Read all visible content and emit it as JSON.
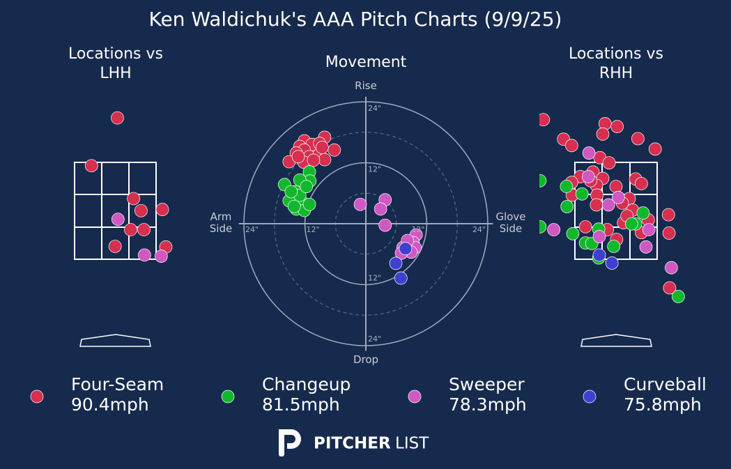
{
  "title": "Ken Waldichuk's AAA Pitch Charts (9/9/25)",
  "brand": {
    "bold": "PITCHER",
    "light": "LIST"
  },
  "chart_data": [
    {
      "type": "scatter",
      "title": "Locations vs LHH",
      "xlim": [
        -1.33,
        1.33
      ],
      "ylim": [
        0,
        4.5
      ],
      "series": [
        {
          "name": "Four-Seam",
          "color": "#d62f4f",
          "x": [
            0.03,
            -0.42,
            0.31,
            0.44,
            0.81,
            0.26,
            0.49,
            -0.01,
            0.87
          ],
          "values": [
            4.05,
            3.22,
            2.65,
            2.44,
            2.46,
            2.11,
            2.11,
            1.82,
            1.81
          ]
        },
        {
          "name": "Sweeper",
          "color": "#d058c2",
          "x": [
            0.04,
            0.5,
            0.79
          ],
          "values": [
            2.29,
            1.67,
            1.65
          ]
        }
      ]
    },
    {
      "type": "scatter",
      "title": "Movement",
      "xlim": [
        -25,
        25
      ],
      "ylim": [
        -25,
        25
      ],
      "xticks": [
        {
          "value": -24,
          "label": "24\""
        },
        {
          "value": -12,
          "label": "12\""
        },
        {
          "value": 12,
          "label": "12\""
        },
        {
          "value": 24,
          "label": "24\""
        }
      ],
      "yticks": [
        {
          "value": -24,
          "label": "24\""
        },
        {
          "value": -12,
          "label": "12\""
        },
        {
          "value": 12,
          "label": "12\""
        },
        {
          "value": 24,
          "label": "24\""
        }
      ],
      "minor_rings": [
        6,
        18
      ],
      "axis_labels": {
        "top": "Rise",
        "bottom": "Drop",
        "left": "Arm Side",
        "right": "Glove Side"
      },
      "series": [
        {
          "name": "Four-Seam",
          "velocity": "90.4mph",
          "color": "#d62f4f",
          "x": [
            -8.1,
            -12.1,
            -13.0,
            -10.6,
            -9.1,
            -12.1,
            -13.7,
            -11.1,
            -9.2,
            -8.1,
            -6.2,
            -15.1,
            -12.2,
            -10.3,
            -13.3,
            -8.6
          ],
          "values": [
            17.0,
            16.3,
            15.2,
            15.6,
            15.8,
            14.5,
            13.9,
            13.2,
            13.6,
            12.6,
            14.5,
            12.2,
            12.1,
            12.5,
            13.2,
            15.0
          ]
        },
        {
          "name": "Changeup",
          "velocity": "81.5mph",
          "color": "#12b82b",
          "x": [
            -11.1,
            -11.0,
            -16.0,
            -13.0,
            -13.9,
            -12.6,
            -15.1,
            -13.7,
            -12.1,
            -11.1,
            -14.1,
            -13.0,
            -11.7,
            -14.7
          ],
          "values": [
            10.2,
            8.4,
            7.7,
            8.6,
            6.3,
            4.3,
            4.5,
            2.9,
            2.6,
            3.8,
            3.4,
            5.6,
            7.3,
            6.3
          ]
        },
        {
          "name": "Sweeper",
          "velocity": "78.3mph",
          "color": "#d058c2",
          "x": [
            -1.1,
            3.8,
            2.9,
            3.8,
            9.9,
            9.3,
            9.7,
            7.3,
            8.9,
            7.0,
            8.2
          ],
          "values": [
            3.8,
            4.7,
            2.9,
            -0.3,
            -2.2,
            -3.7,
            -4.7,
            -4.7,
            -5.6,
            -5.8,
            -3.3
          ]
        },
        {
          "name": "Curveball",
          "velocity": "75.8mph",
          "color": "#4040d0",
          "x": [
            7.8,
            5.9,
            6.9
          ],
          "values": [
            -4.9,
            -7.8,
            -10.7
          ]
        }
      ]
    },
    {
      "type": "scatter",
      "title": "Locations vs RHH",
      "xlim": [
        -1.33,
        1.33
      ],
      "ylim": [
        0,
        4.5
      ],
      "series": [
        {
          "name": "Four-Seam",
          "color": "#d62f4f",
          "x": [
            -1.26,
            -0.19,
            0.02,
            -0.23,
            -0.91,
            -0.77,
            0.38,
            0.68,
            -0.28,
            -0.12,
            -0.4,
            -0.62,
            -0.23,
            -0.77,
            -0.34,
            0.0,
            0.34,
            0.44,
            -0.76,
            -0.33,
            0.23,
            0.11,
            -0.34,
            0.29,
            0.13,
            0.56,
            -0.53,
            -0.15,
            0.44,
            0.01,
            0.91,
            0.92,
            0.93,
            -0.44,
            0.19
          ],
          "values": [
            4.02,
            3.95,
            3.9,
            3.77,
            3.68,
            3.57,
            3.69,
            3.51,
            3.36,
            3.27,
            3.11,
            3.03,
            3.0,
            2.93,
            2.88,
            2.86,
            2.99,
            2.91,
            2.71,
            2.71,
            2.65,
            2.57,
            2.54,
            2.45,
            2.23,
            2.28,
            2.16,
            2.11,
            2.06,
            1.94,
            2.37,
            2.05,
            1.1,
            2.96,
            2.35
          ]
        },
        {
          "name": "Changeup",
          "color": "#12b82b",
          "x": [
            -1.32,
            -0.86,
            -0.59,
            -0.85,
            -1.32,
            -0.75,
            -0.53,
            -0.42,
            -0.3,
            -0.04,
            0.47,
            0.34,
            0.27,
            -0.3,
            1.08
          ],
          "values": [
            2.96,
            2.86,
            2.73,
            2.51,
            2.16,
            2.04,
            1.88,
            1.87,
            2.12,
            1.82,
            2.4,
            2.21,
            2.21,
            1.62,
            0.95
          ]
        },
        {
          "name": "Sweeper",
          "color": "#d058c2",
          "x": [
            -0.47,
            -0.48,
            0.04,
            -0.13,
            -1.08,
            0.57,
            0.52,
            -0.29,
            0.96
          ],
          "values": [
            3.44,
            3.03,
            2.67,
            2.54,
            2.11,
            2.11,
            1.81,
            1.99,
            1.45
          ]
        },
        {
          "name": "Curveball",
          "color": "#4040d0",
          "x": [
            -0.29,
            -0.07
          ],
          "values": [
            1.67,
            1.53
          ]
        }
      ]
    }
  ]
}
